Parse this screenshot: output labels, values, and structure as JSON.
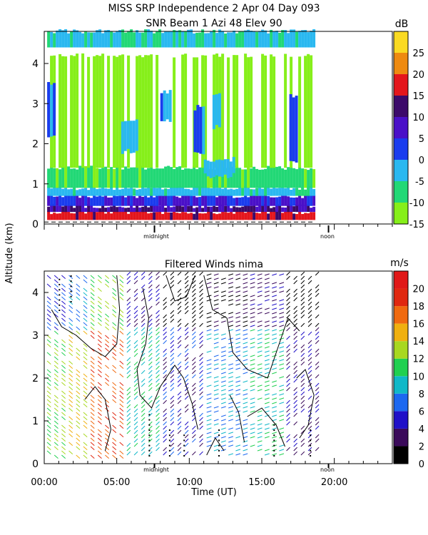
{
  "title": {
    "line1": "MISS SRP Independence   2 Apr 04 Day 093",
    "line2": "SNR Beam 1 Azi  48 Elev 90"
  },
  "shared": {
    "ylabel": "Altitude (km)",
    "xlabel": "Time (UT)",
    "midnight_label": "midnight",
    "noon_label": "noon"
  },
  "chart_data": [
    {
      "type": "heatmap",
      "title": "",
      "xlabel": "",
      "ylabel": "Altitude (km)",
      "xlim": [
        0,
        24
      ],
      "ylim": [
        0,
        4.8
      ],
      "yticks": [
        "0",
        "1",
        "2",
        "3",
        "4"
      ],
      "x_markers": [
        {
          "label": "midnight",
          "x": 7.6
        },
        {
          "label": "noon",
          "x": 19.6
        }
      ],
      "colorbar": {
        "unit": "dB",
        "ticks": [
          "-15",
          "-10",
          "-5",
          "0",
          "5",
          "10",
          "15",
          "20",
          "25"
        ],
        "levels": [
          -15,
          -10,
          -5,
          0,
          5,
          10,
          15,
          20,
          25,
          30
        ],
        "colors": [
          "#86ef1a",
          "#22d876",
          "#2ab8f0",
          "#1a3cee",
          "#4a10c8",
          "#3c0a6a",
          "#e4161c",
          "#ee8a10",
          "#fada22"
        ]
      },
      "data_extent_x": [
        0.2,
        18.6
      ],
      "bands": [
        {
          "alt": [
            0.1,
            0.3
          ],
          "snr_db": 17
        },
        {
          "alt": [
            0.3,
            0.45
          ],
          "snr_db": 10
        },
        {
          "alt": [
            0.45,
            0.7
          ],
          "snr_db": 5
        },
        {
          "alt": [
            0.7,
            0.9
          ],
          "snr_db": -3
        },
        {
          "alt": [
            0.9,
            1.4
          ],
          "snr_db": -8
        },
        {
          "alt": [
            1.4,
            4.2
          ],
          "snr_db": -13
        },
        {
          "alt": [
            4.4,
            4.8
          ],
          "snr_db": -4
        }
      ],
      "features": [
        {
          "x": [
            0.2,
            0.6
          ],
          "alt": [
            2.2,
            3.5
          ],
          "snr_db": 1
        },
        {
          "x": [
            5.3,
            6.4
          ],
          "alt": [
            1.8,
            2.6
          ],
          "snr_db": -3
        },
        {
          "x": [
            8.0,
            8.6
          ],
          "alt": [
            2.6,
            3.3
          ],
          "snr_db": -2
        },
        {
          "x": [
            10.3,
            10.9
          ],
          "alt": [
            1.8,
            2.9
          ],
          "snr_db": 2
        },
        {
          "x": [
            11.6,
            12.1
          ],
          "alt": [
            2.4,
            3.2
          ],
          "snr_db": -2
        },
        {
          "x": [
            16.9,
            17.4
          ],
          "alt": [
            1.6,
            3.2
          ],
          "snr_db": 3
        },
        {
          "x": [
            11.0,
            13.0
          ],
          "alt": [
            1.2,
            1.6
          ],
          "snr_db": -3
        }
      ]
    },
    {
      "type": "scatter",
      "title": "Filtered Winds nima",
      "xlabel": "Time (UT)",
      "ylabel": "Altitude (km)",
      "xlim": [
        0,
        24
      ],
      "ylim": [
        0,
        4.5
      ],
      "xticks": [
        "00:00",
        "05:00",
        "10:00",
        "15:00",
        "20:00"
      ],
      "xtick_values": [
        0,
        5,
        10,
        15,
        20
      ],
      "yticks": [
        "0",
        "1",
        "2",
        "3",
        "4"
      ],
      "x_markers": [
        {
          "label": "midnight",
          "x": 7.6
        },
        {
          "label": "noon",
          "x": 19.6
        }
      ],
      "colorbar": {
        "unit": "m/s",
        "ticks": [
          "0",
          "2",
          "4",
          "6",
          "8",
          "10",
          "12",
          "14",
          "16",
          "18",
          "20"
        ],
        "levels": [
          0,
          2,
          4,
          6,
          8,
          10,
          12,
          14,
          16,
          18,
          20,
          22
        ],
        "colors": [
          "#000000",
          "#3a0a5a",
          "#2010c8",
          "#1c68f0",
          "#10b8c8",
          "#20d050",
          "#a8d820",
          "#f0b010",
          "#f06a10",
          "#e02810",
          "#e01818"
        ]
      },
      "data_extent_x": [
        0.2,
        19.0
      ],
      "data_extent_alt": [
        0.2,
        4.4
      ],
      "speed_field": [
        {
          "x": [
            0.2,
            1.5
          ],
          "speed_ms": [
            10,
            14
          ],
          "dir": "SW"
        },
        {
          "x": [
            1.5,
            3.0
          ],
          "speed_ms": [
            12,
            16
          ],
          "dir": "SW"
        },
        {
          "x": [
            3.0,
            5.5
          ],
          "speed_ms": [
            16,
            20
          ],
          "dir": "SW"
        },
        {
          "x": [
            5.5,
            8.0
          ],
          "speed_ms": [
            8,
            12
          ],
          "dir": "NW"
        },
        {
          "x": [
            8.0,
            11.0
          ],
          "speed_ms": [
            3,
            7
          ],
          "dir": "NW"
        },
        {
          "x": [
            11.0,
            14.0
          ],
          "speed_ms": [
            6,
            10
          ],
          "dir": "W"
        },
        {
          "x": [
            14.0,
            16.5
          ],
          "speed_ms": [
            8,
            12
          ],
          "dir": "W"
        },
        {
          "x": [
            16.5,
            19.0
          ],
          "speed_ms": [
            2,
            6
          ],
          "dir": "NW"
        }
      ]
    }
  ]
}
